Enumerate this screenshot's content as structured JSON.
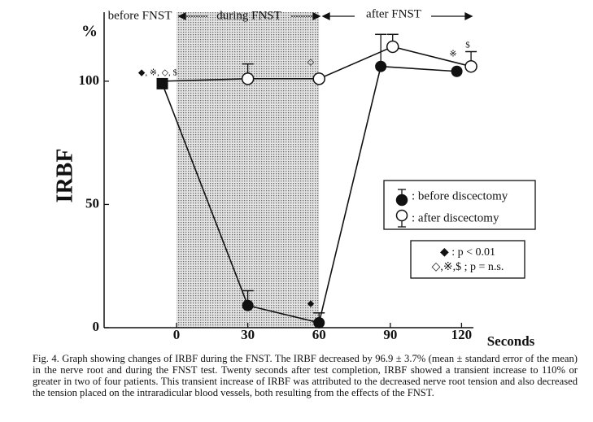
{
  "chart_data": {
    "type": "scatter",
    "y_label": "IRBF",
    "y_unit": "%",
    "x_label": "Seconds",
    "phases": [
      "before FNST",
      "during FNST",
      "after FNST"
    ],
    "shaded_xrange": [
      0,
      60
    ],
    "xlim": [
      -30.5,
      125
    ],
    "xticks": [
      0,
      30,
      60,
      90,
      120
    ],
    "ylim": [
      0,
      128
    ],
    "yticks": [
      0,
      50,
      100
    ],
    "series": [
      {
        "name": ": before discectomy",
        "color": "#111111",
        "marker": "filled",
        "x": [
          -6,
          30,
          60,
          86,
          118
        ],
        "values": [
          99,
          9,
          2,
          106,
          104
        ],
        "errors": [
          null,
          6,
          4,
          13,
          null
        ]
      },
      {
        "name": ": after discectomy",
        "color": "#111111",
        "marker": "open",
        "x": [
          -6,
          30,
          60,
          91,
          124
        ],
        "values": [
          100,
          101,
          101,
          114,
          106
        ],
        "errors": [
          null,
          6,
          null,
          5,
          6
        ]
      }
    ],
    "annotations": [
      "◆, ※, ◇, $",
      "◇",
      "◆",
      "※",
      "$"
    ],
    "significance": [
      "◆ : p < 0.01",
      "◇,※,$ ; p = n.s."
    ],
    "caption": "Fig. 4. Graph showing changes of IRBF during the FNST. The IRBF decreased by 96.9 ± 3.7% (mean ± standard error of the mean) in the nerve root and during the FNST test. Twenty seconds after test completion, IRBF showed a transient increase to 110% or greater in two of four patients. This transient increase of IRBF was attributed to the decreased nerve root tension and also decreased the tension placed on the intraradicular blood vessels, both resulting from the effects of the FNST."
  }
}
